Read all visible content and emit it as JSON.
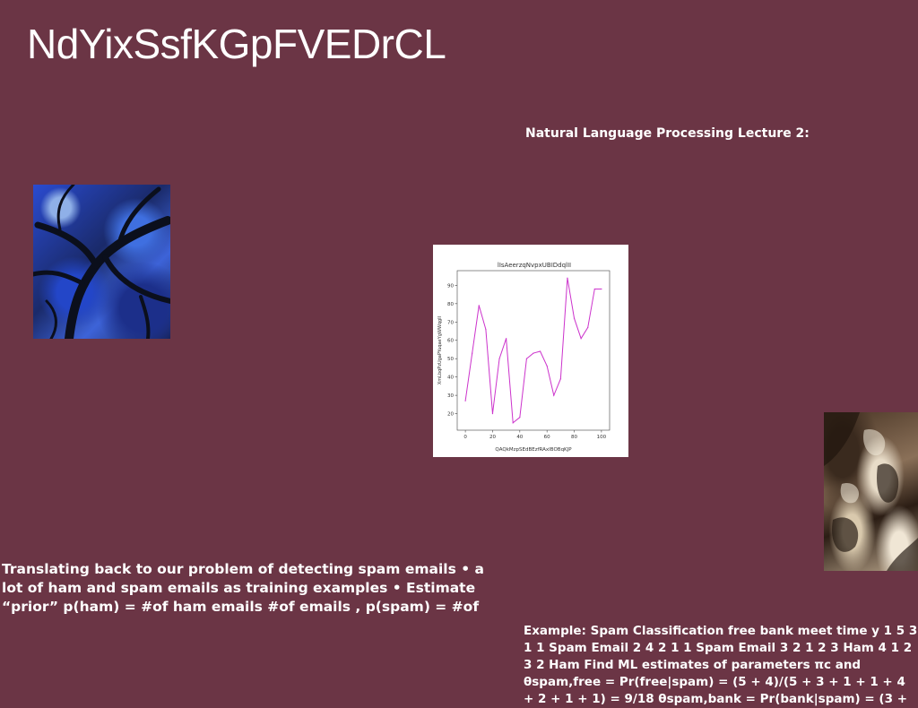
{
  "page": {
    "title": "NdYixSsfKGpFVEDrCL",
    "subtitle": "Natural Language Processing Lecture 2:",
    "paragraph_left": "Translating back to our problem of detecting spam emails • a lot of ham and spam emails as training examples • Estimate “prior” p(ham) = #of ham emails #of emails , p(spam) = #of",
    "paragraph_right": "Example: Spam Classification free bank meet time y 1 5 3 1 1 Spam Email 2 4 2 1 1 Spam Email 3 2 1 2 3 Ham 4 1 2 3 2 Ham Find ML estimates of parameters πc and θspam,free = Pr(free|spam) = (5 + 4)/(5 + 3 + 1 + 1 + 4 + 2 + 1 + 1) = 9/18 θspam,bank = Pr(bank|spam) = (3 +",
    "background_color": "#6b3545"
  },
  "chart_data": {
    "type": "line",
    "title": "lIsAeerzqNvpxUBIDdqlII",
    "xlabel": "QAQkMzpSEdBEzfRAxIBOBqKJP",
    "ylabel": "XmLbqPzUgaPYuqaeYgWWqgII",
    "x": [
      0,
      5,
      10,
      15,
      20,
      25,
      30,
      35,
      40,
      45,
      50,
      55,
      60,
      65,
      70,
      75,
      80,
      85,
      90,
      95,
      100
    ],
    "y": [
      27,
      53,
      79,
      66,
      20,
      50,
      61,
      15,
      18,
      50,
      53,
      54,
      46,
      30,
      39,
      94,
      72,
      61,
      67,
      88,
      88
    ],
    "xticks": [
      0,
      20,
      40,
      60,
      80,
      100
    ],
    "yticks": [
      20,
      30,
      40,
      50,
      60,
      70,
      80,
      90
    ],
    "xlim": [
      -6,
      106
    ],
    "ylim": [
      11,
      98
    ],
    "line_color": "#cc33cc",
    "grid": false
  }
}
